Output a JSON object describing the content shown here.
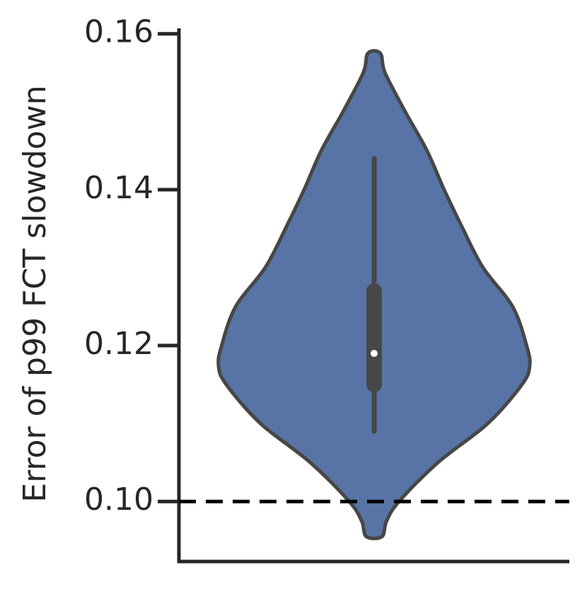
{
  "chart_data": {
    "type": "violin",
    "ylabel": "Error of p99 FCT slowdown",
    "ylim": [
      0.0923,
      0.1607
    ],
    "yticks": [
      {
        "value": 0.1,
        "label": "0.10"
      },
      0.12,
      0.14,
      0.16
    ],
    "color": "#5874a6",
    "edge_color": "#474747",
    "violin": {
      "y": [
        0.1575,
        0.155,
        0.15,
        0.145,
        0.14,
        0.135,
        0.13,
        0.125,
        0.12,
        0.1174,
        0.115,
        0.11,
        0.105,
        0.1,
        0.0975,
        0.0955
      ],
      "density": [
        0.04,
        0.07,
        0.2,
        0.34,
        0.45,
        0.57,
        0.7,
        0.89,
        0.98,
        1,
        0.95,
        0.73,
        0.41,
        0.16,
        0.08,
        0.05
      ]
    },
    "whisker_low": 0.109,
    "q1": 0.114,
    "median": 0.119,
    "q3": 0.128,
    "whisker_high": 0.144,
    "hline": {
      "value": 0.1,
      "color": "#000000",
      "style": "dashed"
    }
  }
}
